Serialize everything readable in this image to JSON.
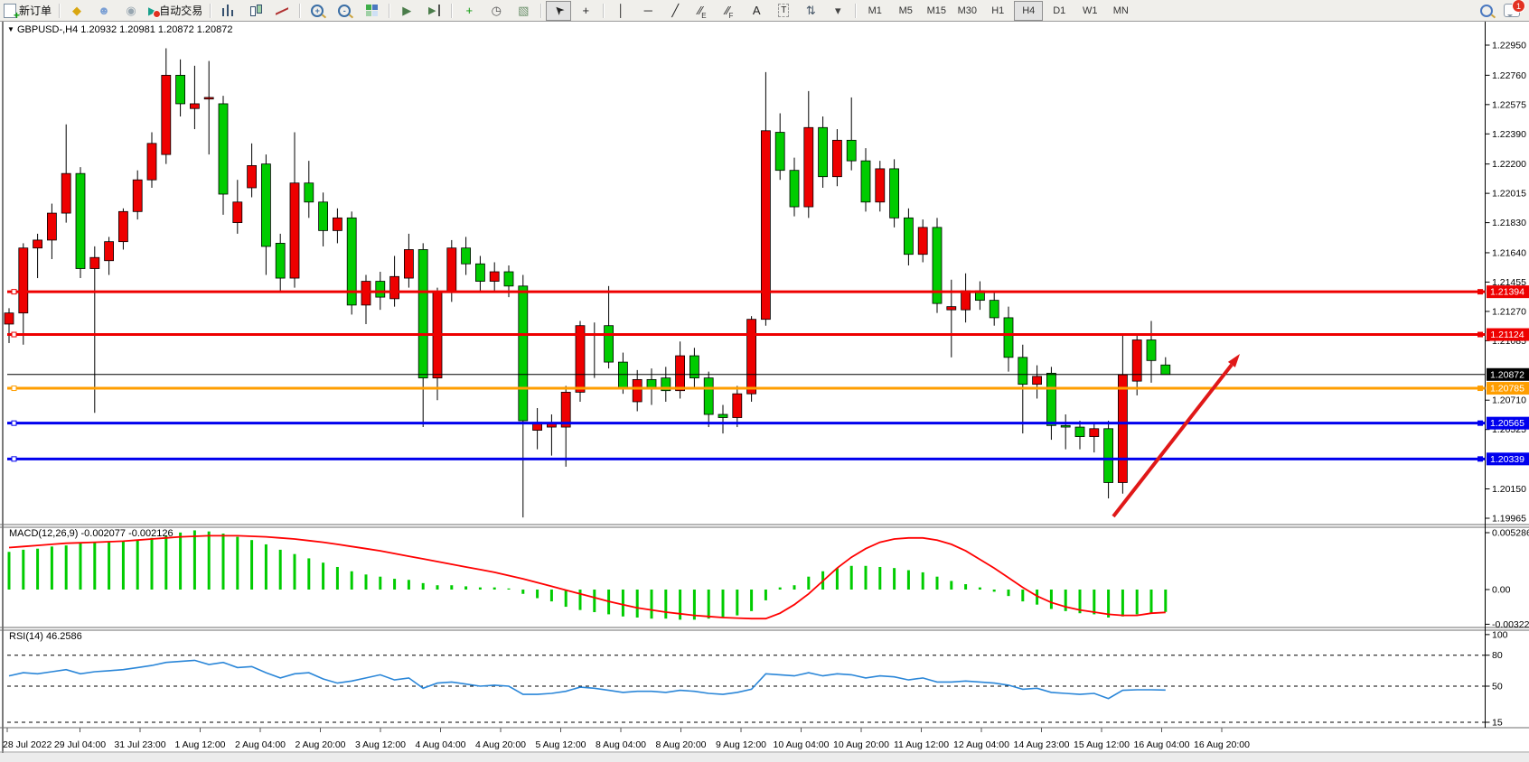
{
  "toolbar": {
    "new_order_label": "新订单",
    "autotrading_label": "自动交易",
    "notification_count": "1",
    "items": [
      {
        "name": "new-order-button",
        "icon": "doc",
        "label": "新订单"
      },
      {
        "name": "separator"
      },
      {
        "name": "styler-icon",
        "icon": "glyph",
        "glyph": "◆",
        "color": "#d9a60f"
      },
      {
        "name": "profiles-icon",
        "icon": "glyph",
        "glyph": "☻",
        "color": "#7a9fd4"
      },
      {
        "name": "signals-icon",
        "icon": "glyph",
        "glyph": "◉",
        "color": "#98a6b0"
      },
      {
        "name": "autotrading-button",
        "icon": "auto",
        "glyph": "▶",
        "label": "自动交易"
      },
      {
        "name": "separator"
      },
      {
        "name": "bar-chart-button",
        "icon": "ibars"
      },
      {
        "name": "candlestick-chart-button",
        "icon": "icandle"
      },
      {
        "name": "line-chart-button",
        "icon": "iline"
      },
      {
        "name": "separator"
      },
      {
        "name": "zoom-in-button",
        "icon": "mag",
        "glyph": "+"
      },
      {
        "name": "zoom-out-button",
        "icon": "mag",
        "glyph": "-"
      },
      {
        "name": "tile-windows-button",
        "icon": "grid4"
      },
      {
        "name": "separator"
      },
      {
        "name": "auto-scroll-button",
        "icon": "glyph",
        "glyph": "▶",
        "color": "#4a7c4a"
      },
      {
        "name": "chart-shift-button",
        "icon": "shift",
        "glyph": "▶"
      },
      {
        "name": "separator"
      },
      {
        "name": "indicators-button",
        "icon": "glyph",
        "glyph": "+",
        "color": "#0a9a0a"
      },
      {
        "name": "periods-button",
        "icon": "glyph",
        "glyph": "◷",
        "color": "#555555"
      },
      {
        "name": "templates-button",
        "icon": "glyph",
        "glyph": "▧",
        "color": "#6a8f6a"
      },
      {
        "name": "separator"
      },
      {
        "name": "cursor-button",
        "icon": "glyph",
        "glyph": "➤",
        "color": "#222222",
        "rot": true,
        "pressed": true
      },
      {
        "name": "crosshair-button",
        "icon": "glyph",
        "glyph": "+",
        "color": "#222222"
      },
      {
        "name": "separator"
      },
      {
        "name": "vertical-line-button",
        "icon": "glyph",
        "glyph": "│",
        "color": "#222222"
      },
      {
        "name": "horizontal-line-button",
        "icon": "glyph",
        "glyph": "─",
        "color": "#222222"
      },
      {
        "name": "trendline-button",
        "icon": "glyph",
        "glyph": "╱",
        "color": "#222222"
      },
      {
        "name": "equidistant-channel-button",
        "icon": "glyph",
        "glyph": "∕∕",
        "color": "#222222",
        "sub": "E"
      },
      {
        "name": "fibonacci-button",
        "icon": "glyph",
        "glyph": "∕∕",
        "color": "#222222",
        "sub": "F"
      },
      {
        "name": "text-button",
        "icon": "glyph",
        "glyph": "A",
        "color": "#222222"
      },
      {
        "name": "text-label-button",
        "icon": "glyph",
        "glyph": "T",
        "color": "#222222",
        "boxed": true
      },
      {
        "name": "arrows-button",
        "icon": "glyph",
        "glyph": "⇅",
        "color": "#445566"
      },
      {
        "name": "dropdown-arrow-icon",
        "icon": "glyph",
        "glyph": "▾",
        "color": "#444444"
      },
      {
        "name": "separator"
      }
    ],
    "timeframes": [
      "M1",
      "M5",
      "M15",
      "M30",
      "H1",
      "H4",
      "D1",
      "W1",
      "MN"
    ],
    "active_timeframe": "H4"
  },
  "chart": {
    "symbol_period": "GBPUSD-,H4",
    "ohlc_text": "1.20932 1.20981 1.20872 1.20872",
    "dropdown_glyph": "▼",
    "price_axis": [
      "1.22950",
      "1.22760",
      "1.22575",
      "1.22390",
      "1.22200",
      "1.22015",
      "1.21830",
      "1.21640",
      "1.21455",
      "1.21270",
      "1.21085",
      "1.20710",
      "1.20525",
      "1.20150",
      "1.19965"
    ],
    "time_axis": [
      "28 Jul 2022",
      "29 Jul 04:00",
      "31 Jul 23:00",
      "1 Aug 12:00",
      "2 Aug 04:00",
      "2 Aug 20:00",
      "3 Aug 12:00",
      "4 Aug 04:00",
      "4 Aug 20:00",
      "5 Aug 12:00",
      "8 Aug 04:00",
      "8 Aug 20:00",
      "9 Aug 12:00",
      "10 Aug 04:00",
      "10 Aug 20:00",
      "11 Aug 12:00",
      "12 Aug 04:00",
      "14 Aug 23:00",
      "15 Aug 12:00",
      "16 Aug 04:00",
      "16 Aug 20:00"
    ],
    "levels": [
      {
        "label": "1.21394",
        "price": 1.21394,
        "color": "#ee0000",
        "width": 3,
        "handle": true
      },
      {
        "label": "1.21124",
        "price": 1.21124,
        "color": "#ee0000",
        "width": 3,
        "handle": true
      },
      {
        "label": "1.20872",
        "price": 1.20872,
        "color": "#000000",
        "width": 1,
        "handle": false
      },
      {
        "label": "1.20785",
        "price": 1.20785,
        "color": "#ff9e00",
        "width": 3,
        "handle": true
      },
      {
        "label": "1.20565",
        "price": 1.20565,
        "color": "#0000ee",
        "width": 3,
        "handle": true
      },
      {
        "label": "1.20339",
        "price": 1.20339,
        "color": "#0000ee",
        "width": 3,
        "handle": true
      }
    ],
    "bull_color": "#ee0000",
    "bear_color": "#00cc00",
    "candles": [
      [
        1.2119,
        1.2129,
        1.2107,
        1.2126
      ],
      [
        1.2126,
        1.217,
        1.2106,
        1.2167
      ],
      [
        1.2167,
        1.2176,
        1.2148,
        1.2172
      ],
      [
        1.2172,
        1.2195,
        1.216,
        1.2189
      ],
      [
        1.2189,
        1.2245,
        1.2183,
        1.2214
      ],
      [
        1.2214,
        1.2218,
        1.2148,
        1.2154
      ],
      [
        1.2154,
        1.2168,
        1.2063,
        1.2161
      ],
      [
        1.2159,
        1.2174,
        1.215,
        1.2171
      ],
      [
        1.2171,
        1.2192,
        1.2166,
        1.219
      ],
      [
        1.219,
        1.2216,
        1.2185,
        1.221
      ],
      [
        1.221,
        1.224,
        1.2205,
        1.2233
      ],
      [
        1.2226,
        1.2293,
        1.222,
        1.2276
      ],
      [
        1.2276,
        1.2286,
        1.225,
        1.2258
      ],
      [
        1.2255,
        1.2282,
        1.2242,
        1.2258
      ],
      [
        1.2261,
        1.2285,
        1.2226,
        1.2262
      ],
      [
        1.2258,
        1.2263,
        1.2188,
        1.2201
      ],
      [
        1.2183,
        1.221,
        1.2176,
        1.2196
      ],
      [
        1.2205,
        1.2233,
        1.2199,
        1.2219
      ],
      [
        1.222,
        1.2226,
        1.215,
        1.2168
      ],
      [
        1.217,
        1.2176,
        1.214,
        1.2148
      ],
      [
        1.2148,
        1.224,
        1.2142,
        1.2208
      ],
      [
        1.2208,
        1.2222,
        1.2186,
        1.2196
      ],
      [
        1.2196,
        1.2202,
        1.2168,
        1.2178
      ],
      [
        1.2178,
        1.2192,
        1.217,
        1.2186
      ],
      [
        1.2186,
        1.219,
        1.2125,
        1.2131
      ],
      [
        1.2131,
        1.215,
        1.2119,
        1.2146
      ],
      [
        1.2146,
        1.2152,
        1.2128,
        1.2136
      ],
      [
        1.2135,
        1.2162,
        1.213,
        1.2149
      ],
      [
        1.2148,
        1.2176,
        1.2142,
        1.2166
      ],
      [
        1.2166,
        1.217,
        1.2054,
        1.2085
      ],
      [
        1.2085,
        1.2142,
        1.2071,
        1.2139
      ],
      [
        1.2139,
        1.2172,
        1.2133,
        1.2167
      ],
      [
        1.2167,
        1.2174,
        1.215,
        1.2157
      ],
      [
        1.2157,
        1.2162,
        1.214,
        1.2146
      ],
      [
        1.2146,
        1.2158,
        1.214,
        1.2152
      ],
      [
        1.2152,
        1.2156,
        1.2136,
        1.2143
      ],
      [
        1.2143,
        1.215,
        1.1997,
        1.2058
      ],
      [
        1.2052,
        1.2066,
        1.204,
        1.2057
      ],
      [
        1.2054,
        1.2062,
        1.2036,
        1.2056
      ],
      [
        1.2054,
        1.208,
        1.2029,
        1.2076
      ],
      [
        1.2076,
        1.2121,
        1.207,
        1.2118
      ],
      [
        1.2112,
        1.212,
        1.2085,
        1.2113
      ],
      [
        1.2118,
        1.2143,
        1.2091,
        1.2095
      ],
      [
        1.2095,
        1.2101,
        1.2075,
        1.2078
      ],
      [
        1.207,
        1.209,
        1.2064,
        1.2084
      ],
      [
        1.2084,
        1.2091,
        1.2068,
        1.2079
      ],
      [
        1.2085,
        1.2092,
        1.207,
        1.2077
      ],
      [
        1.2077,
        1.2108,
        1.2072,
        1.2099
      ],
      [
        1.2099,
        1.2104,
        1.2078,
        1.2085
      ],
      [
        1.2085,
        1.2089,
        1.2054,
        1.2062
      ],
      [
        1.2062,
        1.2068,
        1.205,
        1.206
      ],
      [
        1.206,
        1.208,
        1.2054,
        1.2075
      ],
      [
        1.2075,
        1.2124,
        1.207,
        1.2122
      ],
      [
        1.2122,
        1.2278,
        1.2118,
        1.2241
      ],
      [
        1.224,
        1.2252,
        1.221,
        1.2216
      ],
      [
        1.2216,
        1.2224,
        1.2187,
        1.2193
      ],
      [
        1.2193,
        1.2266,
        1.2186,
        1.2243
      ],
      [
        1.2243,
        1.225,
        1.2205,
        1.2212
      ],
      [
        1.2212,
        1.2242,
        1.2206,
        1.2235
      ],
      [
        1.2235,
        1.2262,
        1.2216,
        1.2222
      ],
      [
        1.2222,
        1.223,
        1.219,
        1.2196
      ],
      [
        1.2196,
        1.2222,
        1.219,
        1.2217
      ],
      [
        1.2217,
        1.2223,
        1.218,
        1.2186
      ],
      [
        1.2186,
        1.2192,
        1.2156,
        1.2163
      ],
      [
        1.2163,
        1.2185,
        1.2158,
        1.218
      ],
      [
        1.218,
        1.2186,
        1.2126,
        1.2132
      ],
      [
        1.2128,
        1.2147,
        1.2098,
        1.213
      ],
      [
        1.2128,
        1.2151,
        1.212,
        1.214
      ],
      [
        1.214,
        1.2146,
        1.2128,
        1.2134
      ],
      [
        1.2134,
        1.214,
        1.2118,
        1.2123
      ],
      [
        1.2123,
        1.213,
        1.2089,
        1.2098
      ],
      [
        1.2098,
        1.2106,
        1.205,
        1.2081
      ],
      [
        1.2081,
        1.2093,
        1.2072,
        1.2086
      ],
      [
        1.2088,
        1.2092,
        1.2046,
        1.2055
      ],
      [
        1.2055,
        1.2062,
        1.204,
        1.2054
      ],
      [
        1.2054,
        1.2058,
        1.204,
        1.2048
      ],
      [
        1.2048,
        1.2056,
        1.2038,
        1.2053
      ],
      [
        1.2053,
        1.2058,
        1.2009,
        1.2019
      ],
      [
        1.2019,
        1.2113,
        1.2012,
        1.2087
      ],
      [
        1.2083,
        1.2113,
        1.2074,
        1.2109
      ],
      [
        1.2109,
        1.2121,
        1.2082,
        1.2096
      ],
      [
        1.20932,
        1.20981,
        1.20872,
        1.20872
      ]
    ]
  },
  "macd": {
    "label": "MACD(12,26,9)",
    "value1": "-0.002077",
    "value2": "-0.002126",
    "axis": [
      "0.005286",
      "0.00",
      "-0.003223"
    ],
    "axis_values": [
      0.005286,
      0,
      -0.003223
    ],
    "histogram_color": "#00cc00",
    "signal_color": "#ff0000",
    "histogram": [
      0.0035,
      0.0037,
      0.0038,
      0.004,
      0.0041,
      0.0043,
      0.0044,
      0.0044,
      0.0045,
      0.0046,
      0.0048,
      0.005,
      0.0053,
      0.0055,
      0.0054,
      0.0052,
      0.0049,
      0.0046,
      0.0042,
      0.0037,
      0.0033,
      0.0029,
      0.0025,
      0.0021,
      0.0017,
      0.0014,
      0.0012,
      0.001,
      0.0009,
      0.0006,
      0.0004,
      0.0004,
      0.0003,
      0.0002,
      0.0002,
      0.0001,
      -0.0004,
      -0.0008,
      -0.0011,
      -0.0016,
      -0.0019,
      -0.0021,
      -0.0023,
      -0.0025,
      -0.0026,
      -0.0027,
      -0.0027,
      -0.0028,
      -0.0028,
      -0.0027,
      -0.0026,
      -0.0024,
      -0.002,
      -0.001,
      0.0002,
      0.0004,
      0.0012,
      0.0017,
      0.002,
      0.0022,
      0.0022,
      0.0021,
      0.002,
      0.0018,
      0.0016,
      0.0012,
      0.0008,
      0.0005,
      0.0002,
      -0.0002,
      -0.0006,
      -0.0011,
      -0.0014,
      -0.0018,
      -0.002,
      -0.0022,
      -0.0023,
      -0.0026,
      -0.0025,
      -0.0023,
      -0.0022,
      -0.002077
    ],
    "signal": [
      0.0039,
      0.004,
      0.0041,
      0.0042,
      0.0043,
      0.00435,
      0.0044,
      0.00445,
      0.0045,
      0.0046,
      0.0047,
      0.0048,
      0.0049,
      0.00495,
      0.005,
      0.005,
      0.005,
      0.00495,
      0.0049,
      0.0048,
      0.0047,
      0.00455,
      0.0044,
      0.0042,
      0.004,
      0.0038,
      0.0036,
      0.00335,
      0.0031,
      0.00285,
      0.0026,
      0.00235,
      0.0021,
      0.00185,
      0.0016,
      0.0013,
      0.001,
      0.00065,
      0.0003,
      -5e-05,
      -0.0004,
      -0.00075,
      -0.0011,
      -0.0014,
      -0.0017,
      -0.0019,
      -0.0021,
      -0.00225,
      -0.0024,
      -0.0025,
      -0.0026,
      -0.00265,
      -0.0027,
      -0.0027,
      -0.0022,
      -0.0014,
      -0.0004,
      0.0008,
      0.002,
      0.003,
      0.0038,
      0.0044,
      0.0047,
      0.0048,
      0.0048,
      0.0046,
      0.0042,
      0.0036,
      0.0028,
      0.002,
      0.0011,
      0.0002,
      -0.0006,
      -0.0012,
      -0.0016,
      -0.0019,
      -0.0021,
      -0.0023,
      -0.0024,
      -0.0024,
      -0.0022,
      -0.002126
    ]
  },
  "rsi": {
    "label": "RSI(14)",
    "value": "46.2586",
    "line_color": "#2a86d8",
    "axis": [
      "100",
      "80",
      "50",
      "15"
    ],
    "axis_values": [
      100,
      80,
      50,
      15
    ],
    "dashed_levels": [
      80,
      50,
      15
    ],
    "series": [
      60,
      63,
      62,
      64,
      66,
      62,
      64,
      65,
      66,
      68,
      70,
      73,
      74,
      75,
      71,
      73,
      68,
      69,
      63,
      58,
      62,
      63,
      57,
      53,
      55,
      58,
      61,
      56,
      58,
      48,
      53,
      54,
      52,
      50,
      51,
      50,
      42,
      42,
      43,
      45,
      49,
      48,
      46,
      44,
      45,
      45,
      44,
      46,
      45,
      43,
      42,
      44,
      47,
      62,
      61,
      60,
      63,
      60,
      62,
      61,
      58,
      60,
      59,
      56,
      58,
      54,
      54,
      55,
      54,
      53,
      51,
      47,
      48,
      44,
      43,
      42,
      43,
      38,
      46,
      46.5,
      46.5,
      46.26
    ]
  },
  "annotation": {
    "arrow_color": "#e01818",
    "from": [
      1232,
      572
    ],
    "to": [
      1372,
      392
    ]
  }
}
